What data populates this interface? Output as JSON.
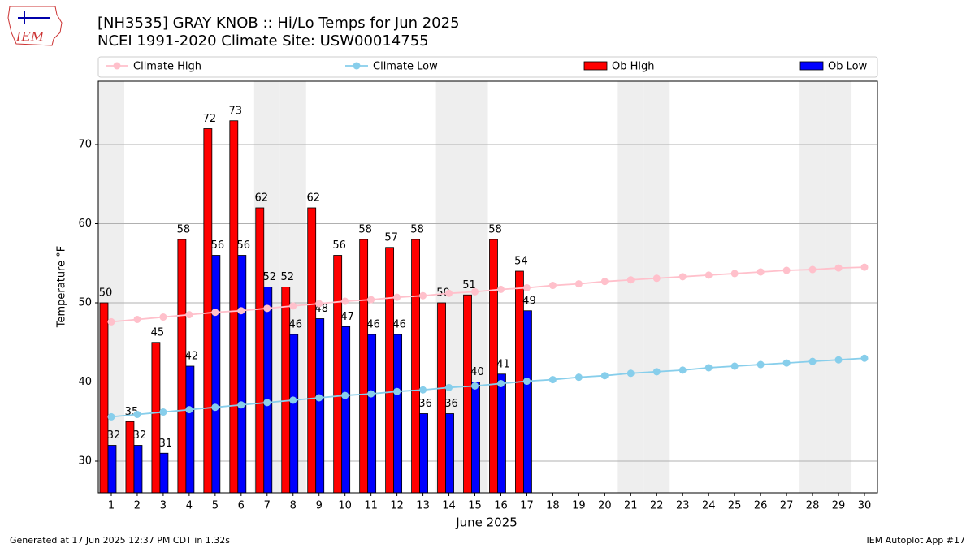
{
  "logo": "IEM",
  "footer": {
    "left": "Generated at 17 Jun 2025 12:37 PM CDT in 1.32s",
    "right": "IEM Autoplot App #17"
  },
  "chart_data": {
    "type": "bar",
    "title": "[NH3535] GRAY KNOB :: Hi/Lo Temps for Jun 2025",
    "subtitle": "NCEI 1991-2020 Climate Site: USW00014755",
    "x_label": "June 2025",
    "y_label": "Temperature °F",
    "x": [
      1,
      2,
      3,
      4,
      5,
      6,
      7,
      8,
      9,
      10,
      11,
      12,
      13,
      14,
      15,
      16,
      17,
      18,
      19,
      20,
      21,
      22,
      23,
      24,
      25,
      26,
      27,
      28,
      29,
      30
    ],
    "xlim": [
      0.5,
      30.5
    ],
    "xticks": [
      1,
      2,
      3,
      4,
      5,
      6,
      7,
      8,
      9,
      10,
      11,
      12,
      13,
      14,
      15,
      16,
      17,
      18,
      19,
      20,
      21,
      22,
      23,
      24,
      25,
      26,
      27,
      28,
      29,
      30
    ],
    "ylim": [
      26,
      78
    ],
    "yticks": [
      30,
      40,
      50,
      60,
      70
    ],
    "grid": true,
    "shaded_days": [
      1,
      7,
      8,
      14,
      15,
      21,
      22,
      28,
      29
    ],
    "series": [
      {
        "name": "Climate High",
        "type": "line",
        "color": "#ffc0cb",
        "values": [
          47.6,
          47.9,
          48.2,
          48.5,
          48.8,
          49.0,
          49.3,
          49.6,
          49.9,
          50.2,
          50.4,
          50.7,
          50.9,
          51.2,
          51.4,
          51.7,
          51.9,
          52.2,
          52.4,
          52.7,
          52.9,
          53.1,
          53.3,
          53.5,
          53.7,
          53.9,
          54.1,
          54.2,
          54.4,
          54.5
        ]
      },
      {
        "name": "Climate Low",
        "type": "line",
        "color": "#87ceeb",
        "values": [
          35.6,
          35.9,
          36.2,
          36.5,
          36.8,
          37.1,
          37.4,
          37.7,
          38.0,
          38.3,
          38.5,
          38.8,
          39.0,
          39.3,
          39.5,
          39.8,
          40.1,
          40.3,
          40.6,
          40.8,
          41.1,
          41.3,
          41.5,
          41.8,
          42.0,
          42.2,
          42.4,
          42.6,
          42.8,
          43.0
        ]
      },
      {
        "name": "Ob High",
        "type": "bar",
        "color": "#ff0000",
        "values": [
          50,
          35,
          45,
          58,
          72,
          73,
          62,
          52,
          62,
          56,
          58,
          57,
          58,
          50,
          51,
          58,
          54,
          null,
          null,
          null,
          null,
          null,
          null,
          null,
          null,
          null,
          null,
          null,
          null,
          null
        ]
      },
      {
        "name": "Ob Low",
        "type": "bar",
        "color": "#0000ff",
        "values": [
          32,
          32,
          31,
          42,
          56,
          56,
          52,
          46,
          48,
          47,
          46,
          46,
          36,
          36,
          40,
          41,
          49,
          null,
          null,
          null,
          null,
          null,
          null,
          null,
          null,
          null,
          null,
          null,
          null,
          null
        ]
      }
    ]
  }
}
